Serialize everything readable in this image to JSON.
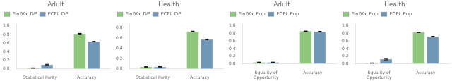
{
  "chart_data": [
    {
      "type": "bar",
      "title": "Adult",
      "categories": [
        "Statistical Parity",
        "Accuracy"
      ],
      "series": [
        {
          "name": "FedVal DP",
          "color": "#8dc87a",
          "values": [
            0.02,
            0.82
          ],
          "errors": [
            0.004,
            0.007
          ]
        },
        {
          "name": "FCFL DP",
          "color": "#7096b8",
          "values": [
            0.1,
            0.635
          ],
          "errors": [
            0.008,
            0.007
          ]
        }
      ],
      "ylim": [
        0,
        1.05
      ],
      "yticks": [
        {
          "value": 0,
          "label": "0.0"
        },
        0.2,
        0.4,
        0.6,
        0.8,
        {
          "value": 1.0,
          "label": "1.0"
        }
      ],
      "grid": false,
      "legend": "upper left"
    },
    {
      "type": "bar",
      "title": "Health",
      "categories": [
        "Statistical Parity",
        "Accuracy"
      ],
      "series": [
        {
          "name": "FedVal DP",
          "color": "#8dc87a",
          "values": [
            0.04,
            0.73
          ],
          "errors": [
            0.004,
            0.006
          ]
        },
        {
          "name": "FCFL DP",
          "color": "#7096b8",
          "values": [
            0.04,
            0.575
          ],
          "errors": [
            0.004,
            0.008
          ]
        }
      ],
      "ylim": [
        0,
        0.88
      ],
      "yticks": [
        {
          "value": 0,
          "label": "0.0"
        },
        0.2,
        0.4,
        0.6,
        0.8
      ],
      "grid": false,
      "legend": "upper left"
    },
    {
      "type": "bar",
      "title": "Adult",
      "categories": [
        "Equality of\nOpportunity",
        "Accuracy"
      ],
      "series": [
        {
          "name": "FedVal Eop",
          "color": "#8dc87a",
          "values": [
            0.04,
            0.855
          ],
          "errors": [
            0.005,
            0.005
          ]
        },
        {
          "name": "FCFL Eop",
          "color": "#7096b8",
          "values": [
            0.04,
            0.845
          ],
          "errors": [
            0.005,
            0.006
          ]
        }
      ],
      "ylim": [
        0,
        1.05
      ],
      "yticks": [
        {
          "value": 0,
          "label": "0.0"
        },
        0.2,
        0.4,
        0.6,
        0.8,
        {
          "value": 1.0,
          "label": "1.0"
        }
      ],
      "grid": false,
      "legend": "upper left"
    },
    {
      "type": "bar",
      "title": "Health",
      "categories": [
        "Equality of\nOpportunity",
        "Accuracy"
      ],
      "series": [
        {
          "name": "FedVal Eop",
          "color": "#8dc87a",
          "values": [
            0.02,
            0.825
          ],
          "errors": [
            0.004,
            0.005
          ]
        },
        {
          "name": "FCFL Eop",
          "color": "#7096b8",
          "values": [
            0.12,
            0.715
          ],
          "errors": [
            0.018,
            0.007
          ]
        }
      ],
      "ylim": [
        0,
        1.05
      ],
      "yticks": [
        {
          "value": 0,
          "label": "0.0"
        },
        0.2,
        0.4,
        0.6,
        0.8,
        {
          "value": 1.0,
          "label": "1.0"
        }
      ],
      "grid": false,
      "legend": "upper left"
    }
  ]
}
